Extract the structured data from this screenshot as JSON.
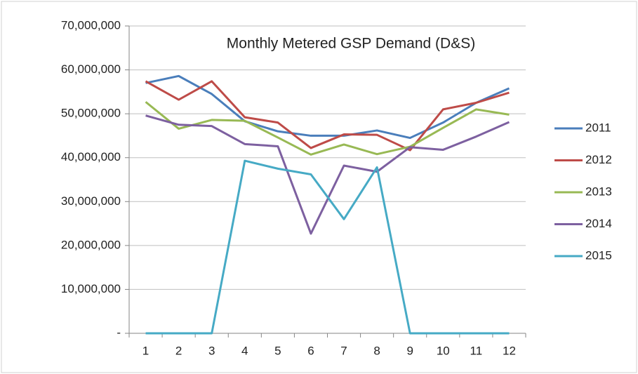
{
  "chart_data": {
    "type": "line",
    "title": "Monthly Metered GSP Demand (D&S)",
    "categories": [
      "1",
      "2",
      "3",
      "4",
      "5",
      "6",
      "7",
      "8",
      "9",
      "10",
      "11",
      "12"
    ],
    "series": [
      {
        "name": "2011",
        "color": "#4a7ebb",
        "values": [
          57000000,
          58600000,
          54500000,
          48300000,
          46000000,
          45000000,
          45000000,
          46200000,
          44500000,
          48000000,
          52500000,
          55800000
        ]
      },
      {
        "name": "2012",
        "color": "#be4b48",
        "values": [
          57400000,
          53200000,
          57400000,
          49200000,
          48000000,
          42200000,
          45300000,
          45200000,
          41700000,
          51000000,
          52500000,
          54800000
        ]
      },
      {
        "name": "2013",
        "color": "#98b954",
        "values": [
          52700000,
          46600000,
          48600000,
          48400000,
          44600000,
          40700000,
          43000000,
          40800000,
          42500000,
          46800000,
          51000000,
          49800000
        ]
      },
      {
        "name": "2014",
        "color": "#7d60a0",
        "values": [
          49600000,
          47500000,
          47200000,
          43100000,
          42600000,
          22700000,
          38200000,
          36800000,
          42400000,
          41800000,
          44800000,
          48100000
        ]
      },
      {
        "name": "2015",
        "color": "#46aac5",
        "values": [
          0,
          0,
          0,
          39300000,
          37500000,
          36200000,
          26000000,
          37800000,
          0,
          0,
          0,
          0
        ]
      }
    ],
    "ylim": [
      0,
      70000000
    ],
    "yticks": [
      {
        "value": 0,
        "label": "-"
      },
      {
        "value": 10000000,
        "label": "10,000,000"
      },
      {
        "value": 20000000,
        "label": "20,000,000"
      },
      {
        "value": 30000000,
        "label": "30,000,000"
      },
      {
        "value": 40000000,
        "label": "40,000,000"
      },
      {
        "value": 50000000,
        "label": "50,000,000"
      },
      {
        "value": 60000000,
        "label": "60,000,000"
      },
      {
        "value": 70000000,
        "label": "70,000,000"
      }
    ],
    "grid": true,
    "legend": "right"
  }
}
